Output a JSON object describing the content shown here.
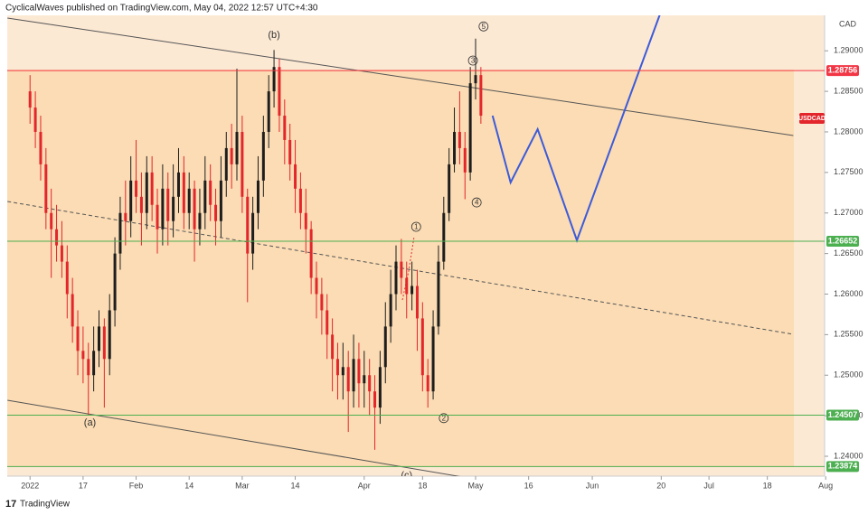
{
  "header": {
    "text": "CyclicalWaves published on TradingView.com, May 04, 2022 12:57 UTC+4:30"
  },
  "footer": {
    "brand": "TradingView"
  },
  "chart_data": {
    "type": "candlestick",
    "symbol": "USDCAD",
    "currency": "CAD",
    "up_color": "#1e1e1e",
    "down_color": "#e3262b",
    "x": [
      0,
      1,
      2,
      3,
      4,
      5,
      6,
      7,
      8,
      9,
      10,
      11,
      12,
      13,
      14,
      15,
      16,
      17,
      18,
      19,
      20,
      21,
      22,
      23,
      24,
      25,
      26,
      27,
      28,
      29,
      30,
      31,
      32,
      33,
      34,
      35,
      36,
      37,
      38,
      39,
      40,
      41,
      42,
      43,
      44,
      45,
      46,
      47,
      48,
      49,
      50,
      51,
      52,
      53,
      54,
      55,
      56,
      57,
      58,
      59,
      60,
      61,
      62,
      63,
      64,
      65,
      66,
      67,
      68,
      69,
      70,
      71,
      72,
      73,
      74,
      75,
      76,
      77,
      78,
      79,
      80,
      81,
      82,
      83,
      84,
      85
    ],
    "open": [
      1.285,
      1.283,
      1.28,
      1.276,
      1.27,
      1.268,
      1.266,
      1.264,
      1.26,
      1.256,
      1.253,
      1.252,
      1.25,
      1.253,
      1.256,
      1.252,
      1.258,
      1.265,
      1.27,
      1.269,
      1.274,
      1.272,
      1.27,
      1.275,
      1.271,
      1.268,
      1.273,
      1.269,
      1.272,
      1.275,
      1.27,
      1.273,
      1.268,
      1.27,
      1.274,
      1.271,
      1.269,
      1.274,
      1.278,
      1.276,
      1.28,
      1.272,
      1.265,
      1.27,
      1.274,
      1.28,
      1.285,
      1.288,
      1.282,
      1.279,
      1.276,
      1.273,
      1.27,
      1.268,
      1.262,
      1.26,
      1.258,
      1.255,
      1.252,
      1.25,
      1.251,
      1.248,
      1.252,
      1.249,
      1.25,
      1.248,
      1.246,
      1.251,
      1.256,
      1.26,
      1.264,
      1.262,
      1.26,
      1.261,
      1.257,
      1.25,
      1.248,
      1.256,
      1.264,
      1.27,
      1.276,
      1.28,
      1.278,
      1.275,
      1.286,
      1.287
    ],
    "high": [
      1.287,
      1.285,
      1.282,
      1.278,
      1.273,
      1.271,
      1.269,
      1.266,
      1.262,
      1.258,
      1.256,
      1.254,
      1.256,
      1.258,
      1.257,
      1.26,
      1.267,
      1.272,
      1.274,
      1.277,
      1.279,
      1.275,
      1.277,
      1.277,
      1.273,
      1.276,
      1.275,
      1.276,
      1.278,
      1.277,
      1.275,
      1.274,
      1.273,
      1.277,
      1.276,
      1.273,
      1.277,
      1.28,
      1.281,
      1.2878,
      1.282,
      1.273,
      1.272,
      1.277,
      1.282,
      1.287,
      1.2901,
      1.289,
      1.284,
      1.281,
      1.279,
      1.275,
      1.273,
      1.269,
      1.264,
      1.262,
      1.26,
      1.257,
      1.254,
      1.254,
      1.253,
      1.255,
      1.254,
      1.253,
      1.252,
      1.25,
      1.253,
      1.259,
      1.263,
      1.266,
      1.2668,
      1.264,
      1.264,
      1.263,
      1.259,
      1.252,
      1.258,
      1.266,
      1.272,
      1.278,
      1.283,
      1.285,
      1.28,
      1.288,
      1.2915,
      1.288
    ],
    "low": [
      1.281,
      1.278,
      1.274,
      1.268,
      1.262,
      1.264,
      1.262,
      1.257,
      1.254,
      1.25,
      1.249,
      1.2451,
      1.248,
      1.251,
      1.246,
      1.25,
      1.256,
      1.263,
      1.266,
      1.267,
      1.27,
      1.266,
      1.268,
      1.269,
      1.265,
      1.266,
      1.266,
      1.267,
      1.27,
      1.268,
      1.268,
      1.264,
      1.266,
      1.268,
      1.269,
      1.266,
      1.267,
      1.272,
      1.273,
      1.274,
      1.27,
      1.259,
      1.263,
      1.268,
      1.272,
      1.278,
      1.283,
      1.28,
      1.276,
      1.274,
      1.27,
      1.268,
      1.265,
      1.26,
      1.257,
      1.255,
      1.252,
      1.248,
      1.247,
      1.247,
      1.243,
      1.246,
      1.246,
      1.246,
      1.245,
      1.2408,
      1.244,
      1.249,
      1.254,
      1.258,
      1.26,
      1.257,
      1.258,
      1.253,
      1.248,
      1.246,
      1.247,
      1.255,
      1.263,
      1.269,
      1.275,
      1.276,
      1.2717,
      1.274,
      1.284,
      1.281
    ],
    "close": [
      1.283,
      1.28,
      1.276,
      1.27,
      1.268,
      1.266,
      1.264,
      1.26,
      1.256,
      1.253,
      1.252,
      1.25,
      1.253,
      1.256,
      1.252,
      1.258,
      1.265,
      1.27,
      1.269,
      1.274,
      1.272,
      1.27,
      1.275,
      1.271,
      1.268,
      1.273,
      1.269,
      1.272,
      1.275,
      1.27,
      1.273,
      1.268,
      1.27,
      1.274,
      1.271,
      1.269,
      1.274,
      1.278,
      1.276,
      1.28,
      1.272,
      1.265,
      1.27,
      1.274,
      1.28,
      1.285,
      1.288,
      1.282,
      1.279,
      1.276,
      1.273,
      1.27,
      1.268,
      1.262,
      1.26,
      1.258,
      1.255,
      1.252,
      1.25,
      1.251,
      1.248,
      1.252,
      1.249,
      1.25,
      1.248,
      1.246,
      1.251,
      1.256,
      1.26,
      1.264,
      1.262,
      1.26,
      1.261,
      1.257,
      1.25,
      1.248,
      1.256,
      1.264,
      1.27,
      1.276,
      1.28,
      1.278,
      1.275,
      1.286,
      1.287,
      1.282
    ],
    "xlim": [
      -4.3,
      149.8
    ],
    "ylim": [
      1.23755,
      1.29437
    ],
    "xticks": [
      {
        "value": 0,
        "label": "2022"
      },
      {
        "value": 10,
        "label": "17"
      },
      {
        "value": 20,
        "label": "Feb"
      },
      {
        "value": 30,
        "label": "14"
      },
      {
        "value": 40,
        "label": "Mar"
      },
      {
        "value": 50,
        "label": "14"
      },
      {
        "value": 63,
        "label": "Apr"
      },
      {
        "value": 74,
        "label": "18"
      },
      {
        "value": 84,
        "label": "May"
      },
      {
        "value": 94,
        "label": "16"
      },
      {
        "value": 106,
        "label": "Jun"
      },
      {
        "value": 119,
        "label": "20"
      },
      {
        "value": 128,
        "label": "Jul"
      },
      {
        "value": 139,
        "label": "18"
      },
      {
        "value": 150,
        "label": "Aug"
      }
    ],
    "yticks": [
      {
        "value": 1.24,
        "label": "1.24000"
      },
      {
        "value": 1.245,
        "label": "1.24500"
      },
      {
        "value": 1.25,
        "label": "1.25000"
      },
      {
        "value": 1.255,
        "label": "1.25500"
      },
      {
        "value": 1.26,
        "label": "1.26000"
      },
      {
        "value": 1.265,
        "label": "1.26500"
      },
      {
        "value": 1.27,
        "label": "1.27000"
      },
      {
        "value": 1.275,
        "label": "1.27500"
      },
      {
        "value": 1.28,
        "label": "1.28000"
      },
      {
        "value": 1.285,
        "label": "1.28500"
      },
      {
        "value": 1.29,
        "label": "1.29000"
      }
    ],
    "levels": [
      {
        "value": 1.28756,
        "color": "#f23645"
      },
      {
        "value": 1.26652,
        "color": "#4caf50"
      },
      {
        "value": 1.24507,
        "color": "#4caf50"
      },
      {
        "value": 1.23874,
        "color": "#4caf50"
      }
    ],
    "trendlines": [
      {
        "x": [
          -4.26,
          143.9
        ],
        "y": [
          1.29404,
          1.27955
        ],
        "color": "#555555",
        "style": "solid"
      },
      {
        "x": [
          -4.26,
          143.9
        ],
        "y": [
          1.27142,
          1.25504
        ],
        "color": "#555555",
        "style": "dashed"
      },
      {
        "x": [
          -4.26,
          82.6
        ],
        "y": [
          1.24691,
          1.23733
        ],
        "color": "#555555",
        "style": "solid"
      }
    ],
    "projection": {
      "x": [
        87.2,
        90.6,
        95.7,
        103.1,
        118.7
      ],
      "y": [
        1.282,
        1.27376,
        1.28033,
        1.26663,
        1.2944
      ],
      "color": "#3d5bd9"
    },
    "annotations": [
      {
        "text": "(a)",
        "x": 11.3,
        "y": 1.2441,
        "circled": false
      },
      {
        "text": "(b)",
        "x": 46,
        "y": 1.2919,
        "circled": false
      },
      {
        "text": "(c)",
        "x": 71,
        "y": 1.2376,
        "circled": false
      },
      {
        "text": "1",
        "x": 72.8,
        "y": 1.2683,
        "circled": true
      },
      {
        "text": "2",
        "x": 78,
        "y": 1.2447,
        "circled": true
      },
      {
        "text": "3",
        "x": 83.5,
        "y": 1.2888,
        "circled": true
      },
      {
        "text": "4",
        "x": 84.2,
        "y": 1.2713,
        "circled": true
      },
      {
        "text": "5",
        "x": 85.5,
        "y": 1.293,
        "circled": true
      }
    ]
  }
}
